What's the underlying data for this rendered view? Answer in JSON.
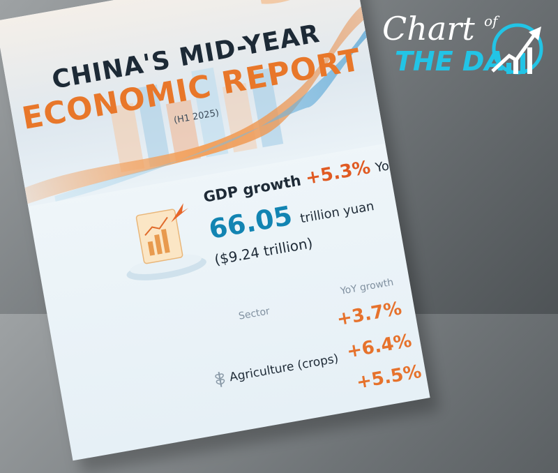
{
  "report": {
    "title_line1": "CHINA'S MID-YEAR",
    "title_line2": "ECONOMIC REPORT",
    "period": "(H1 2025)",
    "gdp_label": "GDP growth",
    "gdp_growth": "+5.3%",
    "gdp_growth_unit": "YoY",
    "gdp_value": "66.05",
    "gdp_value_unit": "trillion yuan",
    "gdp_usd": "($9.24 trillion)",
    "table": {
      "header_sector": "Sector",
      "header_growth": "YoY growth",
      "rows": [
        {
          "sector": "",
          "growth": "+3.7%"
        },
        {
          "sector": "Agriculture (crops)",
          "growth": "+6.4%"
        },
        {
          "sector": "",
          "growth": "+5.5%"
        }
      ]
    }
  },
  "badge": {
    "word_chart": "Chart",
    "word_of": "of",
    "word_the_day": "THE DA",
    "accent_color": "#22c4e6"
  }
}
